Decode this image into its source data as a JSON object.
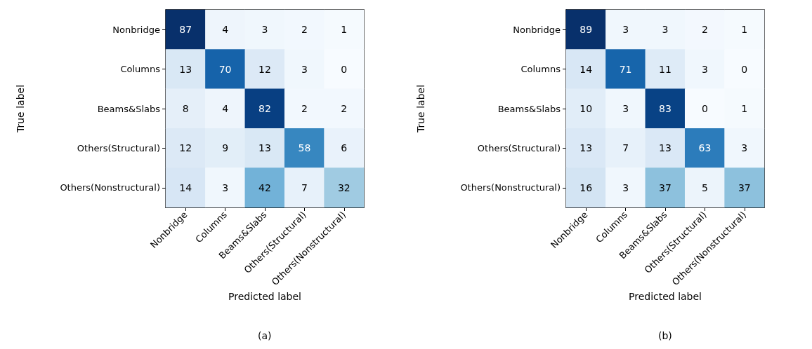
{
  "chart_data": [
    {
      "type": "heatmap",
      "xlabel": "Predicted label",
      "ylabel": "True label",
      "annotations": [
        "(a)"
      ],
      "data_labels": true,
      "categories": [
        "Nonbridge",
        "Columns",
        "Beams&Slabs",
        "Others(Structural)",
        "Others(Nonstructural)"
      ],
      "y_categories": [
        "Nonbridge",
        "Columns",
        "Beams&Slabs",
        "Others(Structural)",
        "Others(Nonstructural)"
      ],
      "cells": [
        [
          87,
          4,
          3,
          2,
          1
        ],
        [
          13,
          70,
          12,
          3,
          0
        ],
        [
          8,
          4,
          82,
          2,
          2
        ],
        [
          12,
          9,
          13,
          58,
          6
        ],
        [
          14,
          3,
          42,
          7,
          32
        ]
      ]
    },
    {
      "type": "heatmap",
      "xlabel": "Predicted label",
      "ylabel": "True label",
      "annotations": [
        "(b)"
      ],
      "data_labels": true,
      "categories": [
        "Nonbridge",
        "Columns",
        "Beams&Slabs",
        "Others(Structural)",
        "Others(Nonstructural)"
      ],
      "y_categories": [
        "Nonbridge",
        "Columns",
        "Beams&Slabs",
        "Others(Structural)",
        "Others(Nonstructural)"
      ],
      "cells": [
        [
          89,
          3,
          3,
          2,
          1
        ],
        [
          14,
          71,
          11,
          3,
          0
        ],
        [
          10,
          3,
          83,
          0,
          1
        ],
        [
          13,
          7,
          13,
          63,
          3
        ],
        [
          16,
          3,
          37,
          5,
          37
        ]
      ]
    }
  ]
}
